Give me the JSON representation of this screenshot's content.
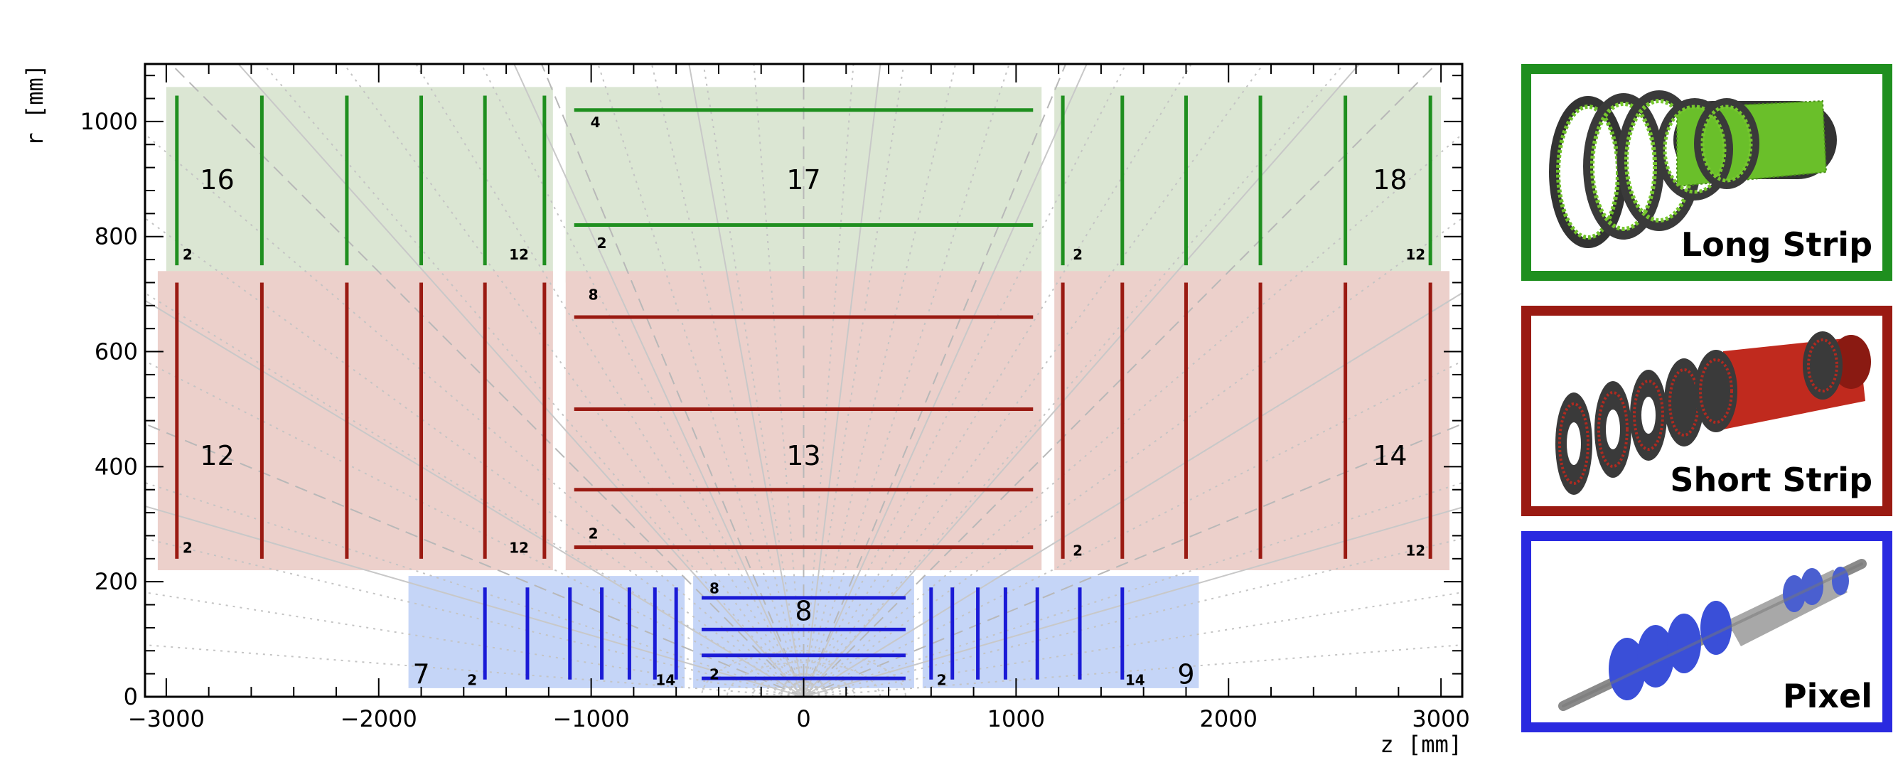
{
  "axes": {
    "x_label": "z [mm]",
    "y_label": "r [mm]",
    "x_ticks": [
      "−3000",
      "−2000",
      "−1000",
      "0",
      "1000",
      "2000",
      "3000"
    ],
    "y_ticks": [
      "0",
      "200",
      "400",
      "600",
      "800",
      "1000"
    ]
  },
  "regions": [
    {
      "id": "16",
      "system": "long-strip",
      "first_layer": "2",
      "last_layer": "12"
    },
    {
      "id": "17",
      "system": "long-strip",
      "first_layer": "2",
      "last_layer": "4"
    },
    {
      "id": "18",
      "system": "long-strip",
      "first_layer": "2",
      "last_layer": "12"
    },
    {
      "id": "12",
      "system": "short-strip",
      "first_layer": "2",
      "last_layer": "12"
    },
    {
      "id": "13",
      "system": "short-strip",
      "first_layer": "2",
      "last_layer": "8"
    },
    {
      "id": "14",
      "system": "short-strip",
      "first_layer": "2",
      "last_layer": "12"
    },
    {
      "id": "7",
      "system": "pixel",
      "first_layer": "2",
      "last_layer": "14"
    },
    {
      "id": "8",
      "system": "pixel",
      "first_layer": "2",
      "last_layer": "8"
    },
    {
      "id": "9",
      "system": "pixel",
      "first_layer": "2",
      "last_layer": "14"
    }
  ],
  "legend": [
    {
      "label": "Long Strip",
      "color": "#1f8f1f"
    },
    {
      "label": "Short Strip",
      "color": "#9a1a12"
    },
    {
      "label": "Pixel",
      "color": "#2a2ae0"
    }
  ],
  "colors": {
    "long_strip": "#1f8f1f",
    "long_strip_bg": "#dbe6d3",
    "short_strip": "#9a1a12",
    "short_strip_bg": "#ecd0cb",
    "pixel": "#1a1ad6",
    "pixel_bg": "#c5d5f7"
  }
}
